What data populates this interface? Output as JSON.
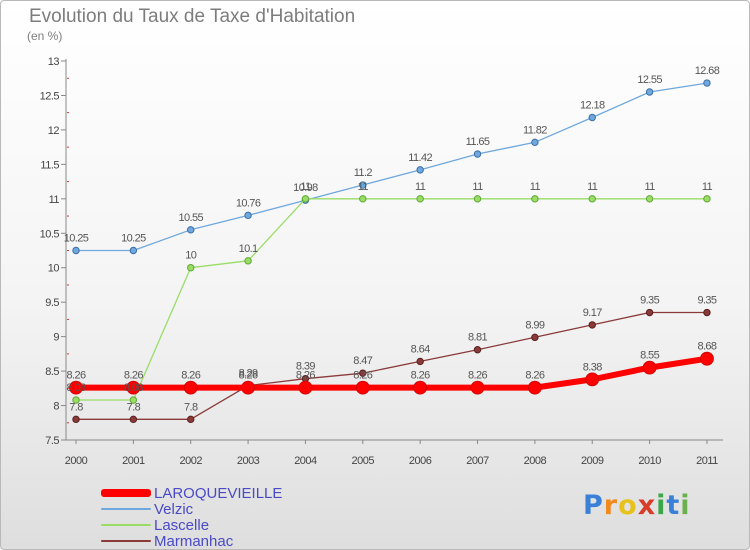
{
  "header": {
    "title": "Evolution du Taux de Taxe d'Habitation",
    "subtitle": "(en %)"
  },
  "colors": {
    "axis": "#888888",
    "tick_text": "#444444",
    "value_text": "#555555",
    "legend_text": "#4a4ac8"
  },
  "logo": {
    "text": "Proxiti",
    "letters": [
      "P",
      "r",
      "o",
      "x",
      "i",
      "t",
      "i"
    ]
  },
  "chart_data": {
    "type": "line",
    "title": "Evolution du Taux de Taxe d'Habitation",
    "subtitle": "(en %)",
    "xlabel": "",
    "ylabel": "(en %)",
    "x": [
      "2000",
      "2001",
      "2002",
      "2003",
      "2004",
      "2005",
      "2006",
      "2007",
      "2008",
      "2009",
      "2010",
      "2011"
    ],
    "ylim": [
      7.5,
      13
    ],
    "yticks": [
      "7.5",
      "8",
      "8.5",
      "9",
      "9.5",
      "10",
      "10.5",
      "11",
      "11.5",
      "12",
      "12.5",
      "13"
    ],
    "grid": false,
    "legend_position": "bottom-left",
    "series": [
      {
        "name": "LAROQUEVIEILLE",
        "color": "#ff0000",
        "values": [
          8.26,
          8.26,
          8.26,
          8.26,
          8.26,
          8.26,
          8.26,
          8.26,
          8.26,
          8.38,
          8.55,
          8.68
        ],
        "labels": [
          "8.26",
          "8.26",
          "8.26",
          "8.26",
          "8.26",
          "8.26",
          "8.26",
          "8.26",
          "8.26",
          "8.38",
          "8.55",
          "8.68"
        ]
      },
      {
        "name": "Velzic",
        "color": "#6fa8dc",
        "values": [
          10.25,
          10.25,
          10.55,
          10.76,
          10.98,
          11.2,
          11.42,
          11.65,
          11.82,
          12.18,
          12.55,
          12.68
        ],
        "labels": [
          "10.25",
          "10.25",
          "10.55",
          "10.76",
          "10.98",
          "11.2",
          "11.42",
          "11.65",
          "11.82",
          "12.18",
          "12.55",
          "12.68"
        ]
      },
      {
        "name": "Lascelle",
        "color": "#99dd66",
        "values": [
          8.08,
          8.08,
          10,
          10.1,
          11,
          11,
          11,
          11,
          11,
          11,
          11,
          11
        ],
        "labels": [
          "8.08",
          "8.08",
          "10",
          "10.1",
          "11",
          "11",
          "11",
          "11",
          "11",
          "11",
          "11",
          "11"
        ]
      },
      {
        "name": "Marmanhac",
        "color": "#8b3a3a",
        "values": [
          7.8,
          7.8,
          7.8,
          8.29,
          8.39,
          8.47,
          8.64,
          8.81,
          8.99,
          9.17,
          9.35,
          9.35
        ],
        "labels": [
          "7.8",
          "7.8",
          "7.8",
          "8.29",
          "8.39",
          "8.47",
          "8.64",
          "8.81",
          "8.99",
          "9.17",
          "9.35",
          "9.35"
        ]
      }
    ]
  }
}
